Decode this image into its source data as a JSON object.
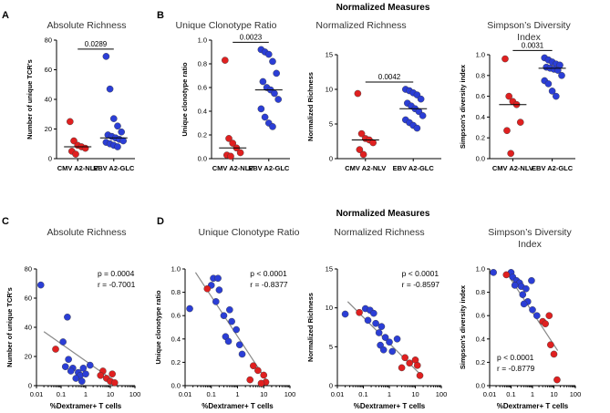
{
  "top_section_title": "Normalized Measures",
  "bottom_section_title": "Normalized Measures",
  "colors": {
    "cmv": "#e02020",
    "ebv": "#2b3ed6",
    "fit": "#888888"
  },
  "chart_data": [
    {
      "id": "A",
      "letter": "A",
      "type": "scatter",
      "title": "Absolute Richness",
      "ylabel": "Number of unique TCR's",
      "categories": [
        "CMV A2-NLV",
        "EBV A2-GLC"
      ],
      "ylim": [
        0,
        80
      ],
      "yticks": [
        0,
        20,
        40,
        60,
        80
      ],
      "pvalue": "0.0289",
      "groups": [
        {
          "name": "CMV A2-NLV",
          "color": "red",
          "median": 8,
          "values": [
            25,
            12,
            9,
            8,
            7,
            5,
            3
          ]
        },
        {
          "name": "EBV A2-GLC",
          "color": "blue",
          "median": 14,
          "values": [
            69,
            47,
            27,
            22,
            18,
            16,
            15,
            14,
            13,
            12,
            11,
            10,
            9,
            8
          ]
        }
      ]
    },
    {
      "id": "B1",
      "letter": "B",
      "type": "scatter",
      "title": "Unique Clonotype Ratio",
      "ylabel": "Unique clonotype ratio",
      "categories": [
        "CMV A2-NLV",
        "EBV A2-GLC"
      ],
      "ylim": [
        0,
        1.0
      ],
      "yticks": [
        0.0,
        0.2,
        0.4,
        0.6,
        0.8,
        1.0
      ],
      "pvalue": "0.0023",
      "groups": [
        {
          "name": "CMV A2-NLV",
          "color": "red",
          "median": 0.09,
          "values": [
            0.83,
            0.17,
            0.13,
            0.09,
            0.05,
            0.03,
            0.02
          ]
        },
        {
          "name": "EBV A2-GLC",
          "color": "blue",
          "median": 0.58,
          "values": [
            0.92,
            0.9,
            0.88,
            0.82,
            0.72,
            0.65,
            0.6,
            0.58,
            0.55,
            0.5,
            0.42,
            0.35,
            0.3,
            0.27
          ]
        }
      ]
    },
    {
      "id": "B2",
      "type": "scatter",
      "title": "Normalized Richness",
      "ylabel": "Normalized Richness",
      "categories": [
        "CMV A2-NLV",
        "EBV A2-GLC"
      ],
      "ylim": [
        0,
        15
      ],
      "yticks": [
        0,
        5,
        10,
        15
      ],
      "pvalue": "0.0042",
      "groups": [
        {
          "name": "CMV A2-NLV",
          "color": "red",
          "median": 2.7,
          "values": [
            9.4,
            3.6,
            2.9,
            2.7,
            2.3,
            1.3,
            0.6
          ]
        },
        {
          "name": "EBV A2-GLC",
          "color": "blue",
          "median": 7.2,
          "values": [
            10.0,
            9.8,
            9.5,
            9.2,
            8.6,
            8.0,
            7.6,
            7.2,
            6.8,
            6.2,
            5.6,
            5.2,
            4.8,
            4.4
          ]
        }
      ]
    },
    {
      "id": "B3",
      "type": "scatter",
      "title": "Simpson's Diversity Index",
      "title_lines": [
        "Simpson’s Diversity",
        "Index"
      ],
      "ylabel": "Simpson's diversity index",
      "categories": [
        "CMV A2-NLV",
        "EBV A2-GLC"
      ],
      "ylim": [
        0,
        1.0
      ],
      "yticks": [
        0.0,
        0.2,
        0.4,
        0.6,
        0.8,
        1.0
      ],
      "pvalue": "0.0031",
      "groups": [
        {
          "name": "CMV A2-NLV",
          "color": "red",
          "median": 0.52,
          "values": [
            0.96,
            0.6,
            0.55,
            0.52,
            0.35,
            0.27,
            0.05
          ]
        },
        {
          "name": "EBV A2-GLC",
          "color": "blue",
          "median": 0.87,
          "values": [
            0.97,
            0.95,
            0.93,
            0.91,
            0.9,
            0.88,
            0.87,
            0.86,
            0.85,
            0.8,
            0.75,
            0.72,
            0.65,
            0.6
          ]
        }
      ]
    },
    {
      "id": "C",
      "letter": "C",
      "type": "scatter",
      "title": "Absolute Richness",
      "ylabel": "Number of unique TCR's",
      "xlabel": "%Dextramer+ T cells",
      "xscale": "log",
      "xlim": [
        0.01,
        100
      ],
      "xticks": [
        "0.01",
        "0.1",
        "1",
        "10",
        "100"
      ],
      "ylim": [
        0,
        80
      ],
      "yticks": [
        0,
        20,
        40,
        60,
        80
      ],
      "stats": [
        "p = 0.0004",
        "r = -0.7001"
      ],
      "stats_position": "top-right",
      "fit": {
        "x": [
          0.02,
          15
        ],
        "y": [
          37,
          3
        ]
      },
      "points": [
        {
          "x": 0.015,
          "y": 69,
          "c": "blue"
        },
        {
          "x": 0.18,
          "y": 47,
          "c": "blue"
        },
        {
          "x": 0.12,
          "y": 30,
          "c": "blue"
        },
        {
          "x": 0.2,
          "y": 18,
          "c": "blue"
        },
        {
          "x": 0.15,
          "y": 13,
          "c": "blue"
        },
        {
          "x": 0.3,
          "y": 12,
          "c": "blue"
        },
        {
          "x": 0.25,
          "y": 10,
          "c": "blue"
        },
        {
          "x": 0.5,
          "y": 9,
          "c": "blue"
        },
        {
          "x": 0.8,
          "y": 12,
          "c": "blue"
        },
        {
          "x": 0.6,
          "y": 7,
          "c": "blue"
        },
        {
          "x": 1.0,
          "y": 8,
          "c": "blue"
        },
        {
          "x": 0.4,
          "y": 5,
          "c": "blue"
        },
        {
          "x": 0.7,
          "y": 3,
          "c": "blue"
        },
        {
          "x": 1.5,
          "y": 14,
          "c": "blue"
        },
        {
          "x": 0.06,
          "y": 25,
          "c": "red"
        },
        {
          "x": 5,
          "y": 10,
          "c": "red"
        },
        {
          "x": 4,
          "y": 7,
          "c": "red"
        },
        {
          "x": 7,
          "y": 5,
          "c": "red"
        },
        {
          "x": 10,
          "y": 3,
          "c": "red"
        },
        {
          "x": 12,
          "y": 8,
          "c": "red"
        },
        {
          "x": 15,
          "y": 2,
          "c": "red"
        }
      ]
    },
    {
      "id": "D1",
      "letter": "D",
      "type": "scatter",
      "title": "Unique Clonotype Ratio",
      "ylabel": "Unique clonotype ratio",
      "xlabel": "%Dextramer+ T cells",
      "xscale": "log",
      "xlim": [
        0.01,
        100
      ],
      "xticks": [
        "0.01",
        "0.1",
        "1",
        "10",
        "100"
      ],
      "ylim": [
        0,
        1.0
      ],
      "yticks": [
        0.0,
        0.2,
        0.4,
        0.6,
        0.8,
        1.0
      ],
      "stats": [
        "p < 0.0001",
        "r = -0.8377"
      ],
      "stats_position": "top-right",
      "fit": {
        "x": [
          0.025,
          15
        ],
        "y": [
          0.97,
          0.02
        ]
      },
      "points": [
        {
          "x": 0.015,
          "y": 0.66,
          "c": "blue"
        },
        {
          "x": 0.12,
          "y": 0.92,
          "c": "blue"
        },
        {
          "x": 0.18,
          "y": 0.92,
          "c": "blue"
        },
        {
          "x": 0.1,
          "y": 0.86,
          "c": "blue"
        },
        {
          "x": 0.2,
          "y": 0.82,
          "c": "blue"
        },
        {
          "x": 0.15,
          "y": 0.72,
          "c": "blue"
        },
        {
          "x": 0.5,
          "y": 0.65,
          "c": "blue"
        },
        {
          "x": 0.3,
          "y": 0.6,
          "c": "blue"
        },
        {
          "x": 0.6,
          "y": 0.55,
          "c": "blue"
        },
        {
          "x": 0.9,
          "y": 0.48,
          "c": "blue"
        },
        {
          "x": 0.35,
          "y": 0.42,
          "c": "blue"
        },
        {
          "x": 0.45,
          "y": 0.38,
          "c": "blue"
        },
        {
          "x": 1.2,
          "y": 0.35,
          "c": "blue"
        },
        {
          "x": 1.5,
          "y": 0.27,
          "c": "blue"
        },
        {
          "x": 0.07,
          "y": 0.83,
          "c": "red"
        },
        {
          "x": 4,
          "y": 0.17,
          "c": "red"
        },
        {
          "x": 6,
          "y": 0.13,
          "c": "red"
        },
        {
          "x": 3,
          "y": 0.05,
          "c": "red"
        },
        {
          "x": 10,
          "y": 0.09,
          "c": "red"
        },
        {
          "x": 12,
          "y": 0.03,
          "c": "red"
        },
        {
          "x": 8,
          "y": 0.02,
          "c": "red"
        }
      ]
    },
    {
      "id": "D2",
      "type": "scatter",
      "title": "Normalized Richness",
      "ylabel": "Normalized Richness",
      "xlabel": "%Dextramer+ T cells",
      "xscale": "log",
      "xlim": [
        0.01,
        100
      ],
      "xticks": [
        "0.01",
        "0.1",
        "1",
        "10",
        "100"
      ],
      "ylim": [
        0,
        15
      ],
      "yticks": [
        0,
        5,
        10,
        15
      ],
      "stats": [
        "p < 0.0001",
        "r = -0.8597"
      ],
      "stats_position": "top-right",
      "fit": {
        "x": [
          0.025,
          15
        ],
        "y": [
          10.8,
          1.5
        ]
      },
      "points": [
        {
          "x": 0.02,
          "y": 9.2,
          "c": "blue"
        },
        {
          "x": 0.12,
          "y": 9.9,
          "c": "blue"
        },
        {
          "x": 0.18,
          "y": 9.7,
          "c": "blue"
        },
        {
          "x": 0.25,
          "y": 9.3,
          "c": "blue"
        },
        {
          "x": 0.15,
          "y": 8.4,
          "c": "blue"
        },
        {
          "x": 0.3,
          "y": 8.0,
          "c": "blue"
        },
        {
          "x": 0.5,
          "y": 7.6,
          "c": "blue"
        },
        {
          "x": 0.4,
          "y": 6.8,
          "c": "blue"
        },
        {
          "x": 0.7,
          "y": 6.2,
          "c": "blue"
        },
        {
          "x": 1.0,
          "y": 5.6,
          "c": "blue"
        },
        {
          "x": 0.45,
          "y": 5.2,
          "c": "blue"
        },
        {
          "x": 0.6,
          "y": 4.6,
          "c": "blue"
        },
        {
          "x": 1.3,
          "y": 4.4,
          "c": "blue"
        },
        {
          "x": 2.0,
          "y": 6.0,
          "c": "blue"
        },
        {
          "x": 0.07,
          "y": 9.4,
          "c": "red"
        },
        {
          "x": 4,
          "y": 3.6,
          "c": "red"
        },
        {
          "x": 6,
          "y": 2.9,
          "c": "red"
        },
        {
          "x": 3,
          "y": 2.3,
          "c": "red"
        },
        {
          "x": 10,
          "y": 3.3,
          "c": "red"
        },
        {
          "x": 12,
          "y": 2.6,
          "c": "red"
        },
        {
          "x": 15,
          "y": 1.3,
          "c": "red"
        }
      ]
    },
    {
      "id": "D3",
      "type": "scatter",
      "title": "Simpson's Diversity Index",
      "title_lines": [
        "Simpson’s Diversity",
        "Index"
      ],
      "ylabel": "Simpson's diversity index",
      "xlabel": "%Dextramer+ T cells",
      "xscale": "log",
      "xlim": [
        0.01,
        100
      ],
      "xticks": [
        "0.01",
        "0.1",
        "1",
        "10",
        "100"
      ],
      "ylim": [
        0,
        1.0
      ],
      "yticks": [
        0.0,
        0.2,
        0.4,
        0.6,
        0.8,
        1.0
      ],
      "stats": [
        "p < 0.0001",
        "r = -0.8779"
      ],
      "stats_position": "bottom-left",
      "fit": {
        "x": [
          0.06,
          15
        ],
        "y": [
          0.97,
          0.3
        ]
      },
      "points": [
        {
          "x": 0.015,
          "y": 0.97,
          "c": "blue"
        },
        {
          "x": 0.1,
          "y": 0.97,
          "c": "blue"
        },
        {
          "x": 0.12,
          "y": 0.93,
          "c": "blue"
        },
        {
          "x": 0.18,
          "y": 0.9,
          "c": "blue"
        },
        {
          "x": 0.25,
          "y": 0.88,
          "c": "blue"
        },
        {
          "x": 0.3,
          "y": 0.85,
          "c": "blue"
        },
        {
          "x": 0.15,
          "y": 0.86,
          "c": "blue"
        },
        {
          "x": 0.5,
          "y": 0.83,
          "c": "blue"
        },
        {
          "x": 0.9,
          "y": 0.9,
          "c": "blue"
        },
        {
          "x": 0.35,
          "y": 0.78,
          "c": "blue"
        },
        {
          "x": 0.6,
          "y": 0.72,
          "c": "blue"
        },
        {
          "x": 0.4,
          "y": 0.7,
          "c": "blue"
        },
        {
          "x": 1.0,
          "y": 0.65,
          "c": "blue"
        },
        {
          "x": 1.6,
          "y": 0.6,
          "c": "blue"
        },
        {
          "x": 0.06,
          "y": 0.95,
          "c": "red"
        },
        {
          "x": 3,
          "y": 0.55,
          "c": "red"
        },
        {
          "x": 4,
          "y": 0.53,
          "c": "red"
        },
        {
          "x": 6,
          "y": 0.6,
          "c": "red"
        },
        {
          "x": 7,
          "y": 0.35,
          "c": "red"
        },
        {
          "x": 10,
          "y": 0.27,
          "c": "red"
        },
        {
          "x": 14,
          "y": 0.05,
          "c": "red"
        }
      ]
    }
  ]
}
